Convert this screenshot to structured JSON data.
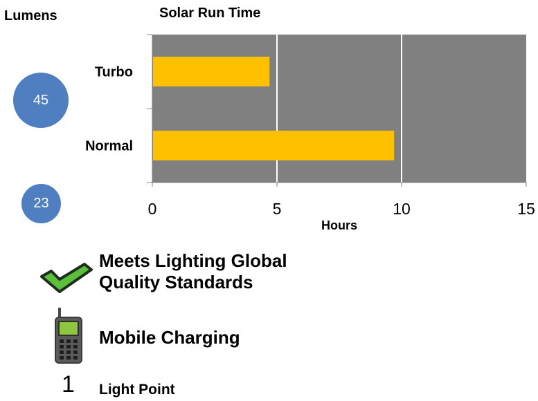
{
  "lumens": {
    "title": "Lumens",
    "values": [
      "45",
      "23"
    ]
  },
  "chart_data": {
    "type": "bar",
    "orientation": "horizontal",
    "title": "Solar Run Time",
    "xlabel": "Hours",
    "ylabel": "",
    "categories": [
      "Turbo",
      "Normal"
    ],
    "values": [
      4.7,
      9.7
    ],
    "xlim": [
      0,
      15
    ],
    "xticks": [
      "0",
      "5",
      "10",
      "15"
    ],
    "grid": true,
    "bar_color": "#ffc000",
    "plot_background": "#808080",
    "gridline_color": "#ffffff"
  },
  "features": {
    "quality": {
      "line1": "Meets Lighting Global",
      "line2": "Quality Standards",
      "icon": "checkmark-icon"
    },
    "mobile": {
      "label": "Mobile Charging",
      "icon": "mobile-phone-icon"
    },
    "light_point": {
      "count": "1",
      "label": "Light Point"
    }
  },
  "colors": {
    "circle": "#4f7fc0",
    "check_fill": "#5bbf3a",
    "check_outline": "#1e2e1e"
  }
}
